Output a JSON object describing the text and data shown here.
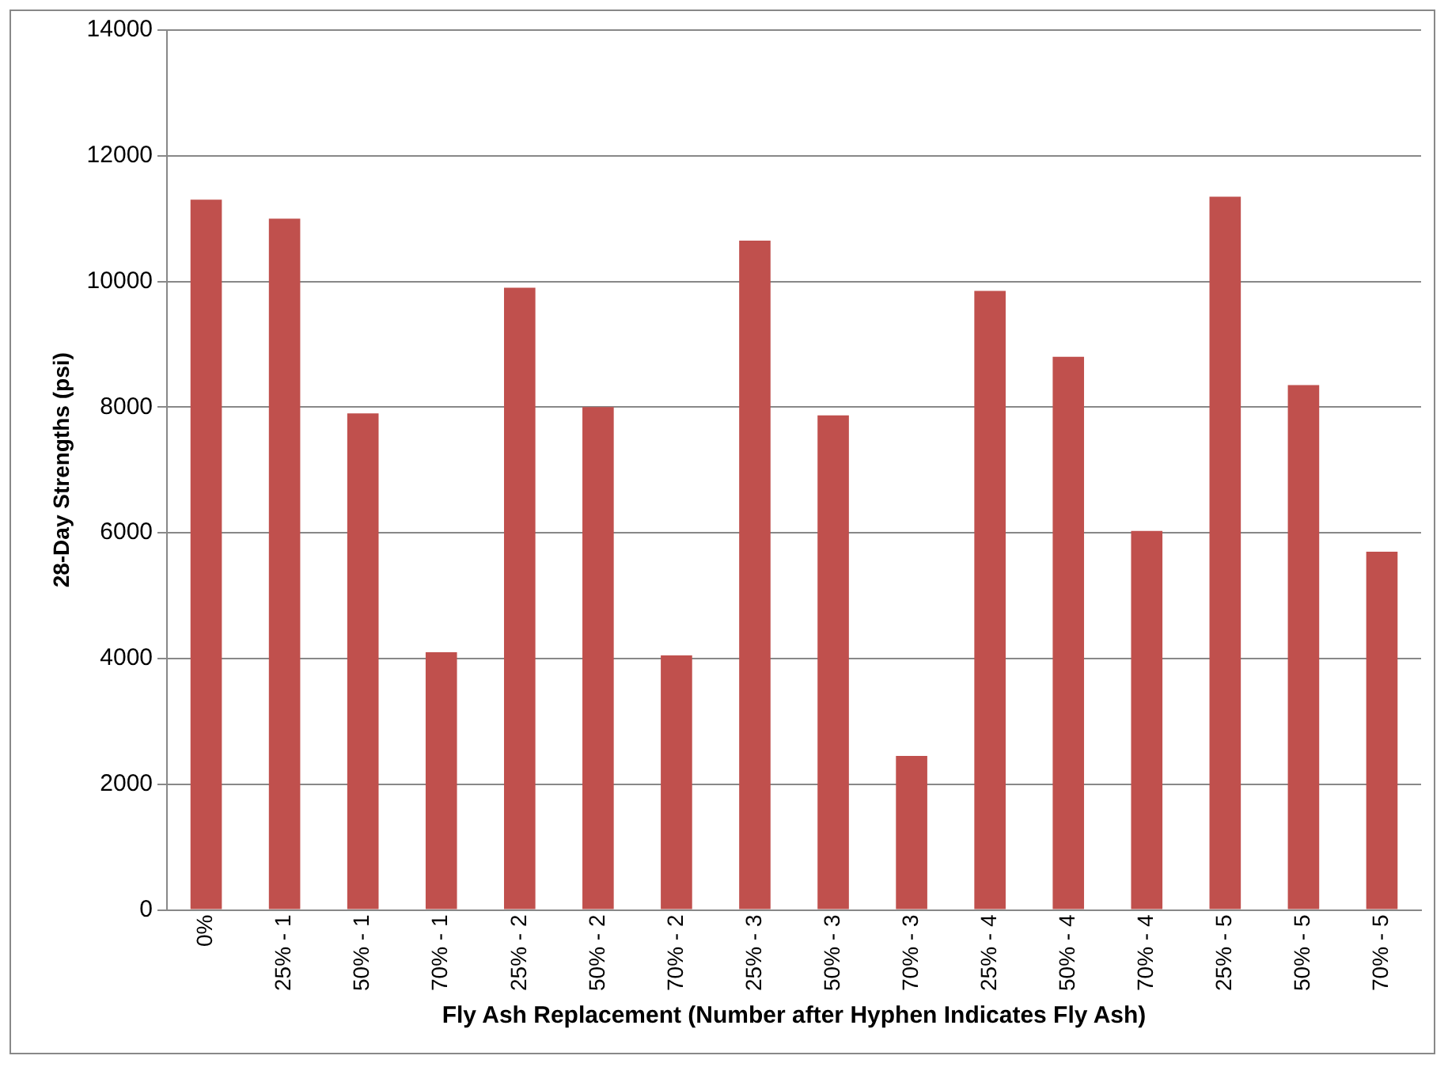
{
  "chart_data": {
    "type": "bar",
    "xlabel": "Fly Ash Replacement (Number after Hyphen Indicates Fly Ash)",
    "ylabel": "28-Day Strengths (psi)",
    "categories": [
      "0%",
      "25% - 1",
      "50% - 1",
      "70% - 1",
      "25% - 2",
      "50% - 2",
      "70% - 2",
      "25% - 3",
      "50% - 3",
      "70% - 3",
      "25% - 4",
      "50% - 4",
      "70% - 4",
      "25% - 5",
      "50% - 5",
      "70% - 5"
    ],
    "values": [
      11300,
      11000,
      7900,
      4100,
      9900,
      8000,
      4050,
      10650,
      7870,
      2450,
      9850,
      8800,
      6030,
      11350,
      8350,
      5700
    ],
    "color": "#c0504d",
    "ylim": [
      0,
      14000
    ],
    "yticks": [
      0,
      2000,
      4000,
      6000,
      8000,
      10000,
      12000,
      14000
    ],
    "grid": "y",
    "legend": false
  }
}
